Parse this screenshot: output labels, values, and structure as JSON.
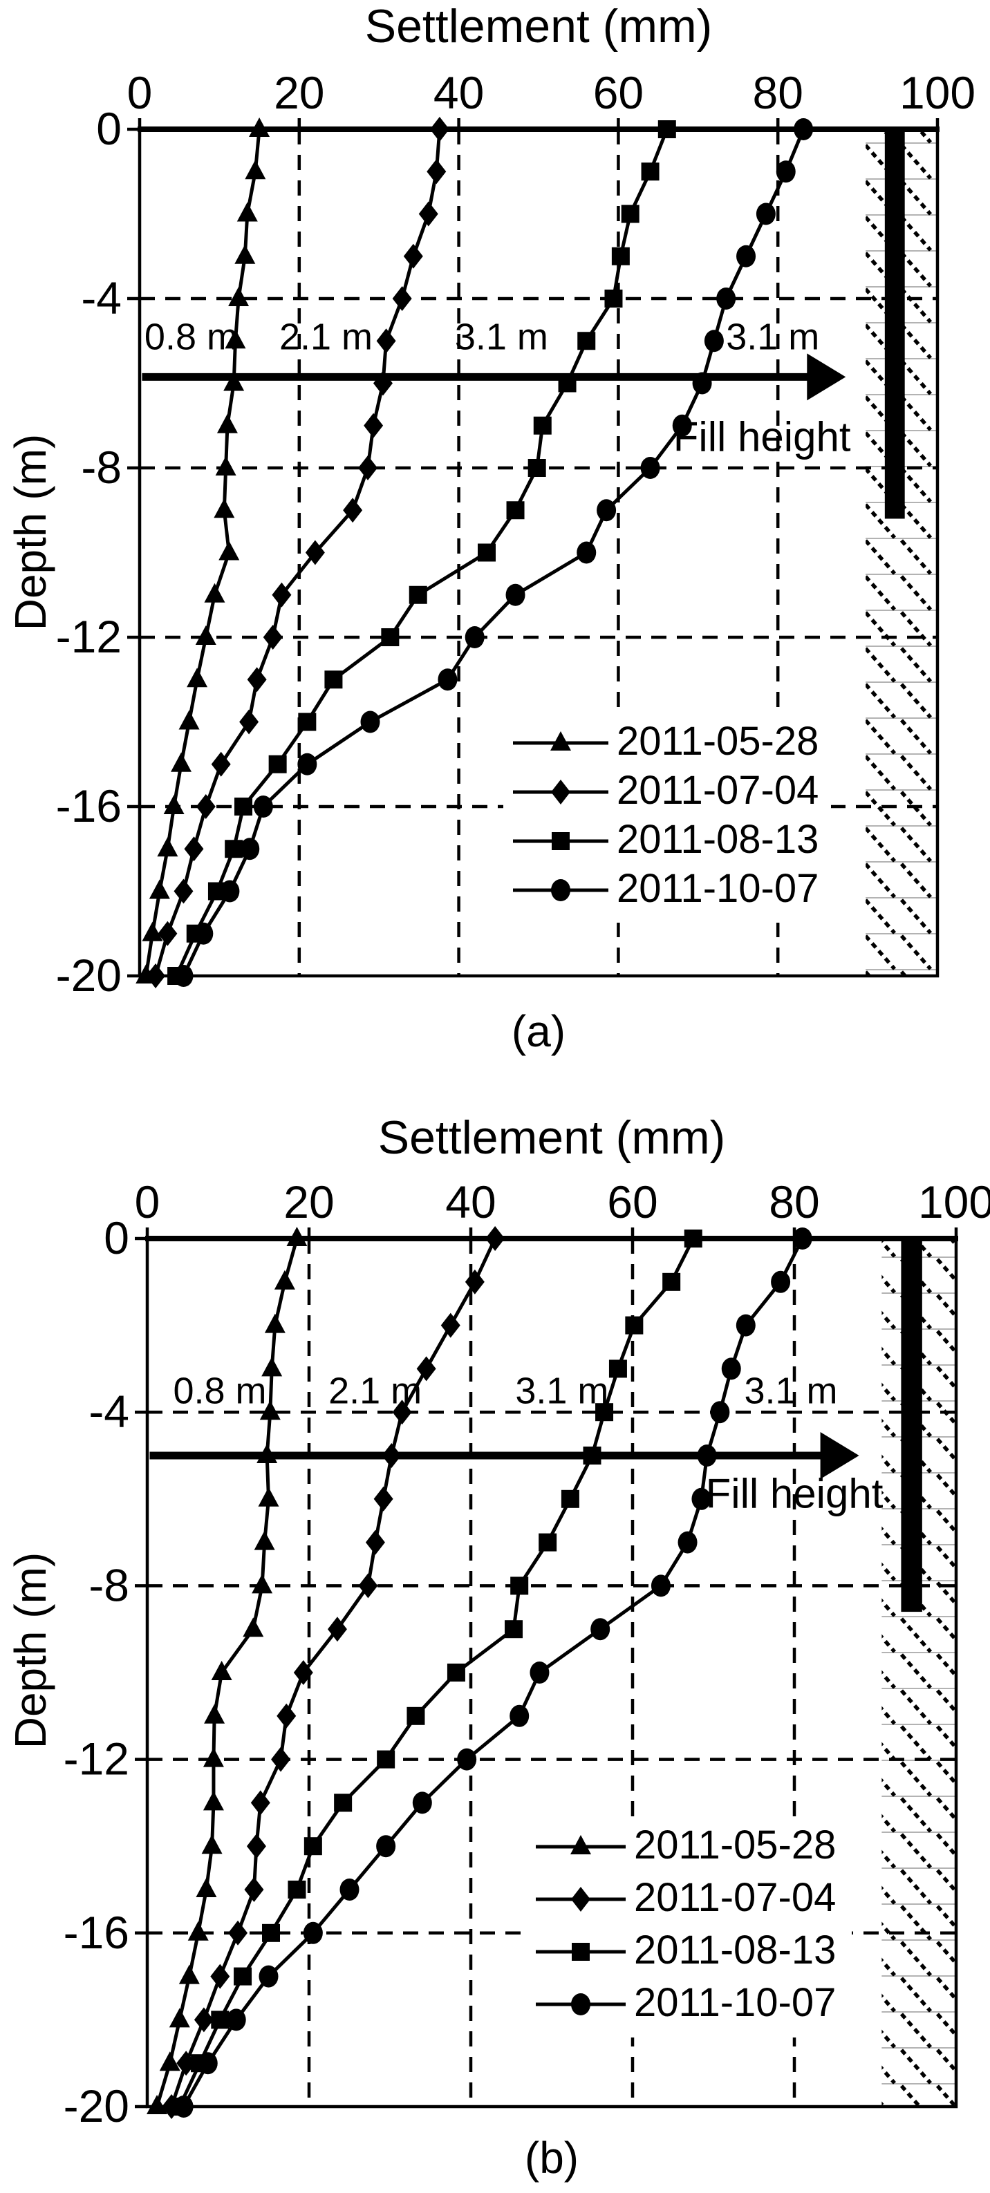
{
  "figure": {
    "background": "#ffffff",
    "ink_color": "#000000",
    "captions": {
      "a": "(a)",
      "b": "(b)"
    }
  },
  "chart_data": [
    {
      "type": "line",
      "title": "Settlement (mm)",
      "xlabel": "Settlement (mm)",
      "ylabel": "Depth (m)",
      "caption": "(a)",
      "xlim": [
        0,
        100
      ],
      "ylim": [
        -20,
        0
      ],
      "xticks": [
        0,
        20,
        40,
        60,
        80,
        100
      ],
      "yticks": [
        0,
        -4,
        -8,
        -12,
        -16,
        -20
      ],
      "grid": "dashed",
      "legend_position": "inside-lower-right",
      "depths": [
        0,
        -1,
        -2,
        -3,
        -4,
        -5,
        -6,
        -7,
        -8,
        -9,
        -10,
        -11,
        -12,
        -13,
        -14,
        -15,
        -16,
        -17,
        -18,
        -19,
        -20
      ],
      "series": [
        {
          "name": "2011-05-28",
          "marker": "triangle",
          "values": [
            15.0,
            14.5,
            13.5,
            13.2,
            12.4,
            12.0,
            11.8,
            11.0,
            10.8,
            10.6,
            11.2,
            9.4,
            8.3,
            7.2,
            6.2,
            5.2,
            4.3,
            3.5,
            2.5,
            1.6,
            0.8
          ]
        },
        {
          "name": "2011-07-04",
          "marker": "diamond",
          "values": [
            37.6,
            37.2,
            36.2,
            34.3,
            32.9,
            30.9,
            30.5,
            29.3,
            28.6,
            26.7,
            22.0,
            17.8,
            16.7,
            14.7,
            13.7,
            10.2,
            8.3,
            6.8,
            5.5,
            3.5,
            2.0
          ]
        },
        {
          "name": "2011-08-13",
          "marker": "square",
          "values": [
            66.1,
            64.0,
            61.5,
            60.3,
            59.4,
            56.0,
            53.6,
            50.5,
            49.8,
            47.1,
            43.5,
            34.9,
            31.4,
            24.3,
            21.0,
            17.3,
            13.0,
            11.8,
            9.7,
            7.0,
            4.6
          ]
        },
        {
          "name": "2011-10-07",
          "marker": "circle",
          "values": [
            83.2,
            81.0,
            78.5,
            76.0,
            73.5,
            72.0,
            70.5,
            68.0,
            64.0,
            58.5,
            56.0,
            47.1,
            42.0,
            38.6,
            28.9,
            21.0,
            15.5,
            13.8,
            11.3,
            8.0,
            5.5
          ]
        }
      ],
      "fill_arrow": {
        "depth": -5.85,
        "x_start": 0.3,
        "x_end": 88.5,
        "label": "Fill height",
        "label_x": 78,
        "label_depth": -7.6,
        "stage_labels": [
          {
            "text": "0.8 m",
            "x": 0.6,
            "depth": -5.2
          },
          {
            "text": "2.1 m",
            "x": 17.5,
            "depth": -5.2
          },
          {
            "text": "3.1 m",
            "x": 39.5,
            "depth": -5.2
          },
          {
            "text": "3.1 m",
            "x": 73.5,
            "depth": -5.2
          }
        ]
      },
      "wall": {
        "x0": 93.4,
        "x1": 95.9,
        "top_depth": 0,
        "bottom_depth": -9.2
      },
      "hatch_band": {
        "x0": 91.0,
        "x1": 100
      }
    },
    {
      "type": "line",
      "title": "Settlement (mm)",
      "xlabel": "Settlement (mm)",
      "ylabel": "Depth (m)",
      "caption": "(b)",
      "xlim": [
        0,
        100
      ],
      "ylim": [
        -20,
        0
      ],
      "xticks": [
        0,
        20,
        40,
        60,
        80,
        100
      ],
      "yticks": [
        0,
        -4,
        -8,
        -12,
        -16,
        -20
      ],
      "grid": "dashed",
      "legend_position": "inside-lower-right",
      "depths": [
        0,
        -1,
        -2,
        -3,
        -4,
        -5,
        -6,
        -7,
        -8,
        -9,
        -10,
        -11,
        -12,
        -13,
        -14,
        -15,
        -16,
        -17,
        -18,
        -19,
        -20
      ],
      "series": [
        {
          "name": "2011-05-28",
          "marker": "triangle",
          "values": [
            18.5,
            17.0,
            15.8,
            15.4,
            15.2,
            14.8,
            15.0,
            14.5,
            14.2,
            13.1,
            9.2,
            8.3,
            8.2,
            8.2,
            8.0,
            7.3,
            6.3,
            5.2,
            4.0,
            2.8,
            1.2
          ]
        },
        {
          "name": "2011-07-04",
          "marker": "diamond",
          "values": [
            43.0,
            40.5,
            37.5,
            34.5,
            31.5,
            30.2,
            29.2,
            28.2,
            27.3,
            23.5,
            19.3,
            17.2,
            16.5,
            14.0,
            13.5,
            13.2,
            11.2,
            9.0,
            7.0,
            4.8,
            3.0
          ]
        },
        {
          "name": "2011-08-13",
          "marker": "square",
          "values": [
            67.5,
            64.8,
            60.2,
            58.2,
            56.5,
            55.0,
            52.3,
            49.5,
            46.0,
            45.3,
            38.2,
            33.2,
            29.5,
            24.2,
            20.5,
            18.5,
            15.3,
            11.8,
            9.0,
            6.5,
            4.0
          ]
        },
        {
          "name": "2011-10-07",
          "marker": "circle",
          "values": [
            81.0,
            78.3,
            74.0,
            72.2,
            70.8,
            69.2,
            68.5,
            66.8,
            63.5,
            56.0,
            48.5,
            46.0,
            39.5,
            34.0,
            29.5,
            25.0,
            20.5,
            15.0,
            11.0,
            7.5,
            4.5
          ]
        }
      ],
      "fill_arrow": {
        "depth": -5.0,
        "x_start": 0.3,
        "x_end": 88.0,
        "label": "Fill height",
        "label_x": 80,
        "label_depth": -6.2,
        "stage_labels": [
          {
            "text": "0.8 m",
            "x": 3.2,
            "depth": -3.8
          },
          {
            "text": "2.1 m",
            "x": 22.4,
            "depth": -3.8
          },
          {
            "text": "3.1 m",
            "x": 45.5,
            "depth": -3.8
          },
          {
            "text": "3.1 m",
            "x": 73.8,
            "depth": -3.8
          }
        ]
      },
      "wall": {
        "x0": 93.2,
        "x1": 95.8,
        "top_depth": 0,
        "bottom_depth": -8.6
      },
      "hatch_band": {
        "x0": 90.8,
        "x1": 100
      }
    }
  ]
}
